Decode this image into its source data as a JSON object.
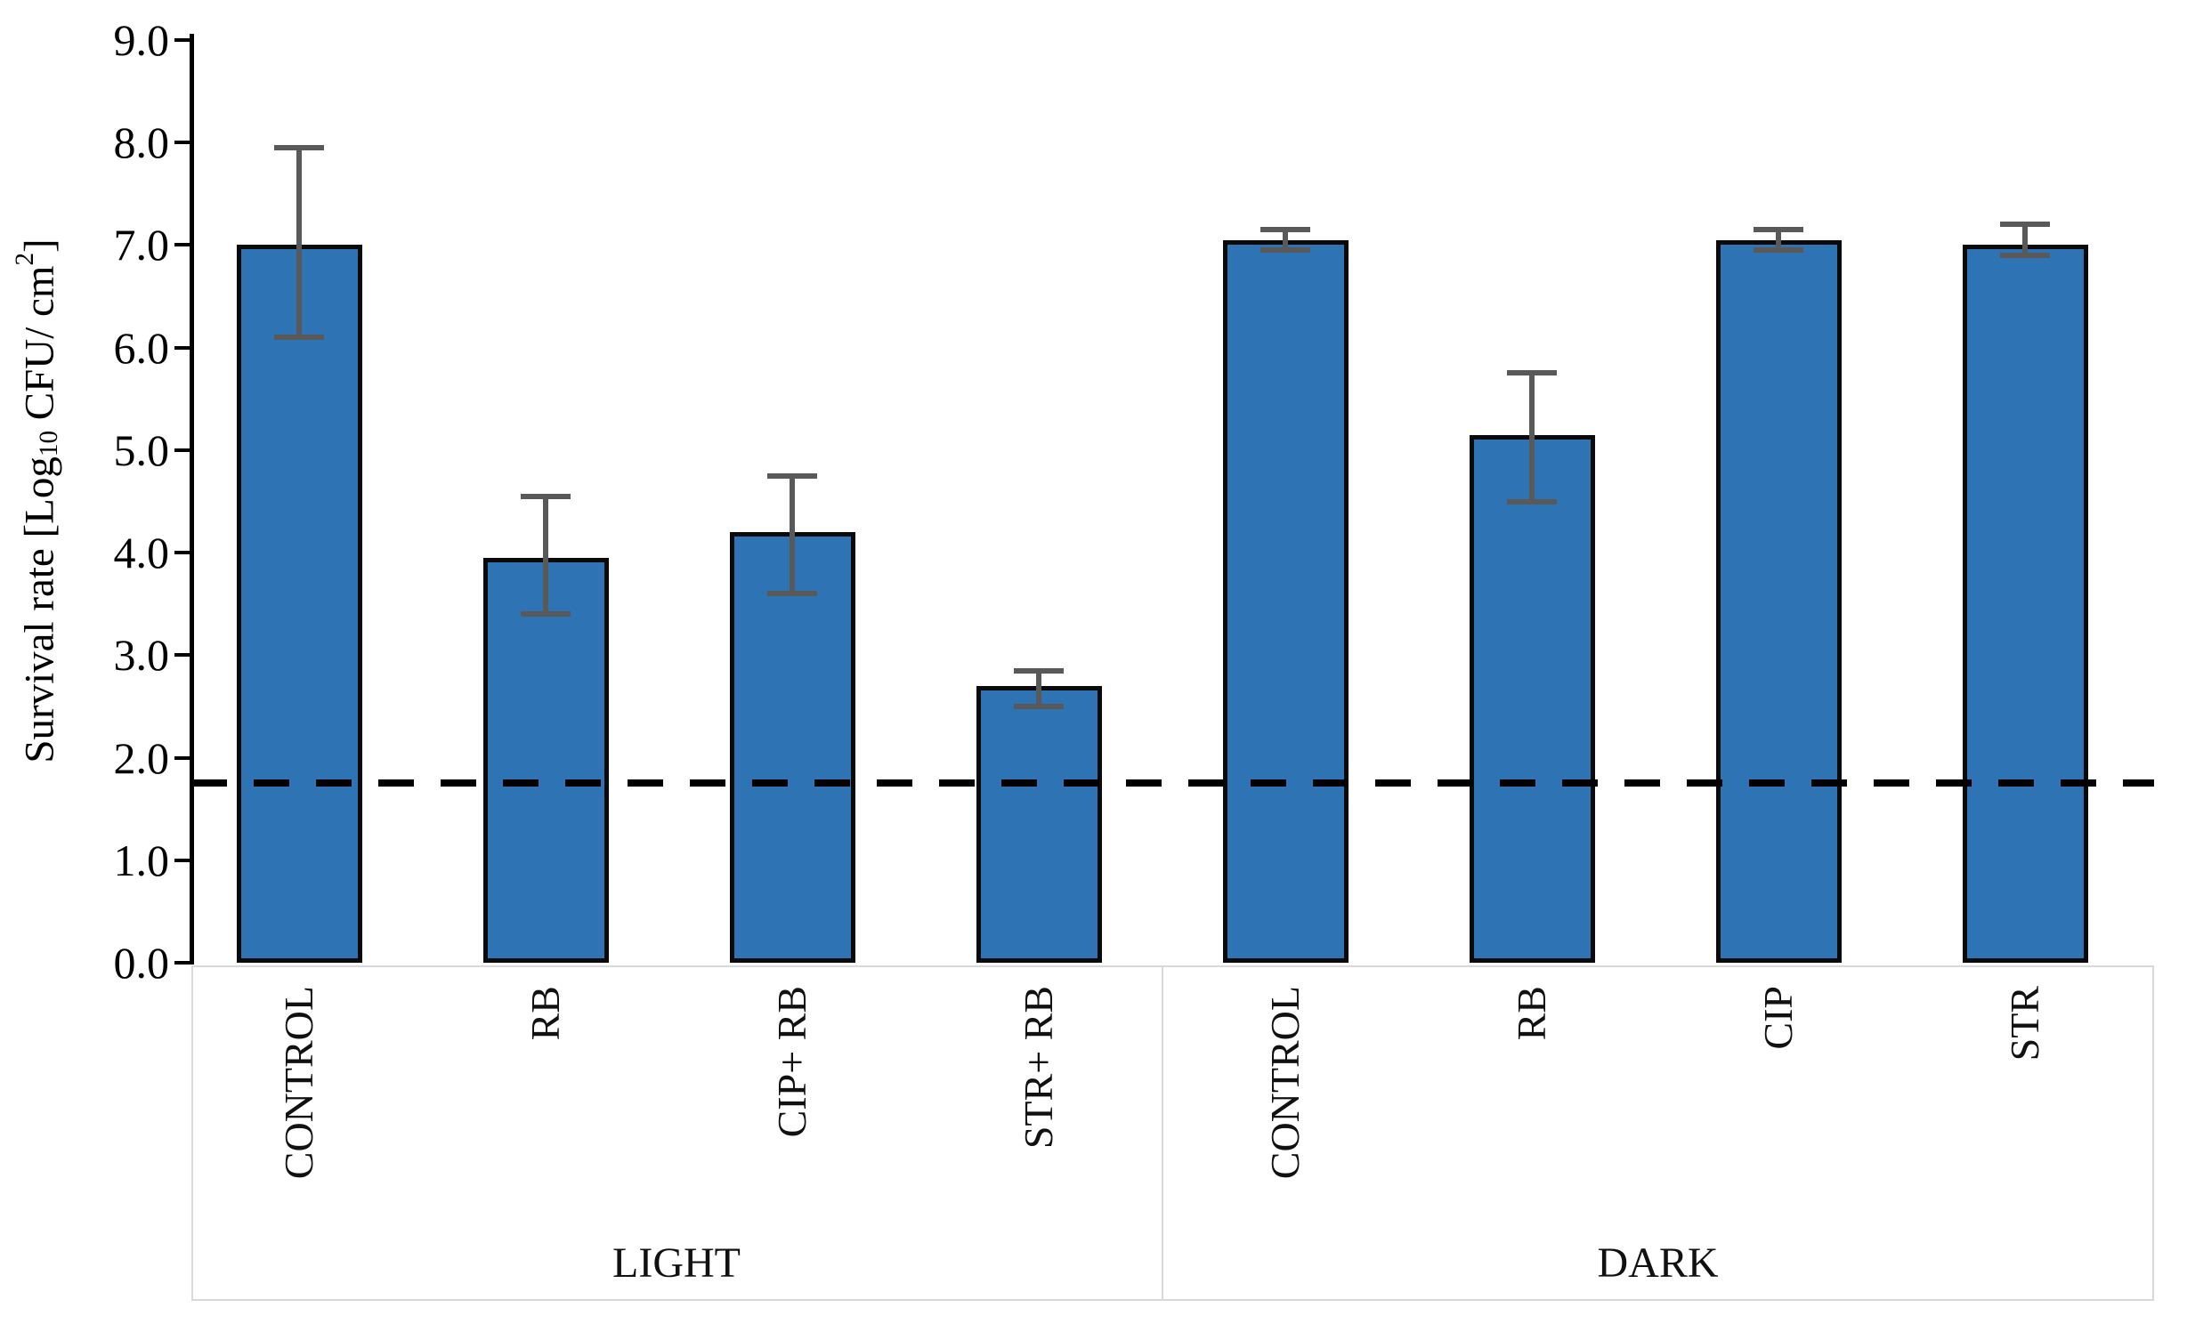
{
  "chart_data": {
    "type": "bar",
    "title": "",
    "ylabel_parts": {
      "pre": "Survival rate [Log",
      "sub": "10",
      "mid": " CFU/ cm",
      "sup": "2",
      "post": "]"
    },
    "ylabel_plain": "Survival rate [Log10 CFU/ cm2]",
    "ylim": [
      0.0,
      9.0
    ],
    "yticks": [
      "9.0",
      "8.0",
      "7.0",
      "6.0",
      "5.0",
      "4.0",
      "3.0",
      "2.0",
      "1.0",
      "0.0"
    ],
    "grid": "off",
    "legend": "none",
    "categories": [
      "CONTROL",
      "RB",
      "CIP+ RB",
      "STR+ RB",
      "CONTROL",
      "RB",
      "CIP",
      "STR"
    ],
    "groups": [
      {
        "label": "LIGHT",
        "count": 4
      },
      {
        "label": "DARK",
        "count": 4
      }
    ],
    "series": [
      {
        "name": "Survival rate",
        "values": [
          7.0,
          3.95,
          4.2,
          2.7,
          7.05,
          5.15,
          7.05,
          7.0
        ],
        "error_low": [
          6.1,
          3.4,
          3.6,
          2.5,
          6.95,
          4.5,
          6.95,
          6.9
        ],
        "error_high": [
          7.95,
          4.55,
          4.75,
          2.85,
          7.15,
          5.75,
          7.15,
          7.2
        ]
      }
    ],
    "reference_line": {
      "value": 1.75,
      "style": "dashed",
      "color": "#000000"
    },
    "colors": {
      "bar_fill": "#2E74B5",
      "bar_border": "#0a0a0a",
      "error_bar": "#595959",
      "axis": "#000000",
      "label_box_border": "#d9d9d9",
      "text": "#000000"
    }
  }
}
